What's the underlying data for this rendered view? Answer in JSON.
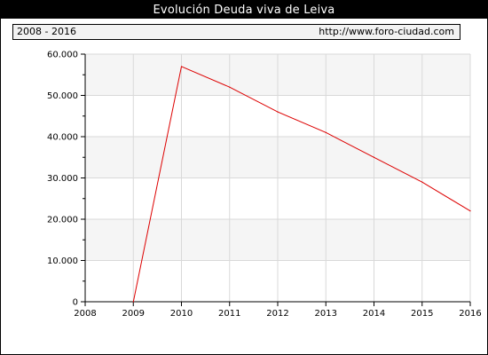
{
  "header": {
    "title": "Evolución Deuda viva de Leiva",
    "range": "2008 - 2016",
    "url": "http://www.foro-ciudad.com"
  },
  "colors": {
    "line": "#dd0000",
    "band": "#f5f5f5",
    "grid": "#d9d9d9"
  },
  "chart_data": {
    "type": "line",
    "title": "Evolución Deuda viva de Leiva",
    "xlabel": "",
    "ylabel": "",
    "x": [
      2009,
      2010,
      2011,
      2012,
      2013,
      2014,
      2015,
      2016
    ],
    "series": [
      {
        "values": [
          0,
          57000,
          52000,
          46000,
          41000,
          35000,
          29000,
          22000
        ]
      }
    ],
    "xlim": [
      2008,
      2016
    ],
    "ylim": [
      0,
      60000
    ],
    "x_ticks": [
      "2008",
      "2009",
      "2010",
      "2011",
      "2012",
      "2013",
      "2014",
      "2015",
      "2016"
    ],
    "y_ticks": [
      {
        "value": 0,
        "label": "0"
      },
      {
        "value": 10000,
        "label": "10.000"
      },
      {
        "value": 20000,
        "label": "20.000"
      },
      {
        "value": 30000,
        "label": "30.000"
      },
      {
        "value": 40000,
        "label": "40.000"
      },
      {
        "value": 50000,
        "label": "50.000"
      },
      {
        "value": 60000,
        "label": "60.000"
      }
    ],
    "grid": true,
    "alternating_bands": true
  }
}
